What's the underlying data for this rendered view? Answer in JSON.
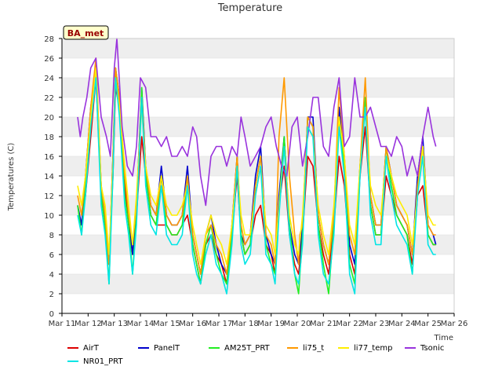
{
  "chart_data": {
    "type": "line",
    "title": "Temperature",
    "xlabel": "Time",
    "ylabel": "Temperatures (C)",
    "ylim": [
      0,
      28
    ],
    "xlim": [
      0,
      15
    ],
    "yticks": [
      0,
      2,
      4,
      6,
      8,
      10,
      12,
      14,
      16,
      18,
      20,
      22,
      24,
      26,
      28
    ],
    "xticks": [
      "Mar 11",
      "Mar 12",
      "Mar 13",
      "Mar 14",
      "Mar 15",
      "Mar 16",
      "Mar 17",
      "Mar 18",
      "Mar 19",
      "Mar 20",
      "Mar 21",
      "Mar 22",
      "Mar 23",
      "Mar 24",
      "Mar 25",
      "Mar 26"
    ],
    "grid": "horizontal bands",
    "legend_position": "bottom",
    "site_label": "BA_met",
    "x_unit": "days since Mar 11",
    "series": [
      {
        "name": "AirT",
        "color": "#dd0000",
        "x": [
          0.6,
          0.75,
          0.9,
          1.1,
          1.3,
          1.5,
          1.65,
          1.8,
          1.95,
          2.05,
          2.2,
          2.4,
          2.55,
          2.7,
          2.85,
          3.05,
          3.2,
          3.4,
          3.6,
          3.8,
          4.0,
          4.2,
          4.4,
          4.6,
          4.8,
          5.0,
          5.15,
          5.3,
          5.5,
          5.7,
          5.9,
          6.1,
          6.3,
          6.5,
          6.7,
          6.85,
          7.0,
          7.2,
          7.4,
          7.6,
          7.8,
          8.0,
          8.15,
          8.3,
          8.5,
          8.7,
          8.9,
          9.05,
          9.2,
          9.4,
          9.6,
          9.8,
          10.0,
          10.2,
          10.4,
          10.6,
          10.8,
          11.0,
          11.2,
          11.4,
          11.6,
          11.8,
          12.0,
          12.2,
          12.4,
          12.6,
          12.8,
          13.0,
          13.2,
          13.4,
          13.6,
          13.8,
          14.0,
          14.2,
          14.3
        ],
        "values": [
          11,
          9,
          12,
          18,
          24,
          12,
          9,
          5,
          14,
          23,
          21,
          13,
          9,
          6,
          10,
          18,
          14,
          10,
          9,
          9,
          9,
          8,
          8,
          9,
          10,
          7,
          5,
          3,
          7,
          8,
          6,
          5,
          3,
          8,
          14,
          8,
          6,
          7,
          10,
          11,
          7,
          6,
          4,
          11,
          15,
          8,
          5,
          4,
          8,
          16,
          15,
          9,
          6,
          4,
          9,
          16,
          13,
          6,
          4,
          14,
          19,
          11,
          8,
          8,
          14,
          12,
          10,
          9,
          8,
          5,
          12,
          13,
          8,
          7,
          7
        ]
      },
      {
        "name": "PanelT",
        "color": "#0000cc",
        "x": [
          0.6,
          0.75,
          0.9,
          1.1,
          1.3,
          1.5,
          1.65,
          1.8,
          1.95,
          2.05,
          2.2,
          2.4,
          2.55,
          2.7,
          2.85,
          3.05,
          3.2,
          3.4,
          3.6,
          3.8,
          4.0,
          4.2,
          4.4,
          4.6,
          4.8,
          5.0,
          5.15,
          5.3,
          5.5,
          5.7,
          5.9,
          6.1,
          6.3,
          6.5,
          6.7,
          6.85,
          7.0,
          7.2,
          7.4,
          7.6,
          7.8,
          8.0,
          8.15,
          8.3,
          8.5,
          8.7,
          8.9,
          9.05,
          9.2,
          9.4,
          9.6,
          9.8,
          10.0,
          10.2,
          10.4,
          10.6,
          10.8,
          11.0,
          11.2,
          11.4,
          11.6,
          11.8,
          12.0,
          12.2,
          12.4,
          12.6,
          12.8,
          13.0,
          13.2,
          13.4,
          13.6,
          13.8,
          14.0,
          14.2,
          14.3
        ],
        "values": [
          11,
          9,
          14,
          21,
          25,
          13,
          10,
          5,
          16,
          25,
          22,
          14,
          10,
          6,
          11,
          23,
          15,
          11,
          10,
          15,
          10,
          9,
          9,
          10,
          15,
          8,
          6,
          4,
          8,
          10,
          7,
          5,
          4,
          9,
          16,
          8,
          7,
          8,
          14,
          17,
          8,
          6,
          5,
          12,
          18,
          9,
          6,
          5,
          9,
          20,
          20,
          10,
          7,
          5,
          10,
          21,
          16,
          7,
          5,
          15,
          21,
          12,
          9,
          9,
          17,
          14,
          11,
          10,
          9,
          6,
          14,
          18,
          9,
          8,
          7
        ]
      },
      {
        "name": "AM25T_PRT",
        "color": "#22ee22",
        "x": [
          0.6,
          0.75,
          0.9,
          1.1,
          1.3,
          1.5,
          1.65,
          1.8,
          1.95,
          2.05,
          2.2,
          2.4,
          2.55,
          2.7,
          2.85,
          3.05,
          3.2,
          3.4,
          3.6,
          3.8,
          4.0,
          4.2,
          4.4,
          4.6,
          4.8,
          5.0,
          5.15,
          5.3,
          5.5,
          5.7,
          5.9,
          6.1,
          6.3,
          6.5,
          6.7,
          6.85,
          7.0,
          7.2,
          7.4,
          7.6,
          7.8,
          8.0,
          8.15,
          8.3,
          8.5,
          8.7,
          8.9,
          9.05,
          9.2,
          9.4,
          9.6,
          9.8,
          10.0,
          10.2,
          10.4,
          10.6,
          10.8,
          11.0,
          11.2,
          11.4,
          11.6,
          11.8,
          12.0,
          12.2,
          12.4,
          12.6,
          12.8,
          13.0,
          13.2,
          13.4,
          13.6,
          13.8,
          14.0,
          14.2,
          14.3
        ],
        "values": [
          11,
          8,
          13,
          20,
          25,
          12,
          9,
          3,
          15,
          25,
          21,
          12,
          9,
          4,
          10,
          23,
          14,
          10,
          9,
          14,
          9,
          8,
          8,
          9,
          14,
          7,
          5,
          3,
          7,
          9,
          6,
          4,
          3,
          8,
          16,
          8,
          6,
          7,
          13,
          16,
          7,
          5,
          4,
          11,
          18,
          9,
          4,
          2,
          8,
          20,
          19,
          9,
          5,
          2,
          9,
          20,
          15,
          5,
          3,
          15,
          22,
          11,
          8,
          8,
          17,
          13,
          10,
          9,
          8,
          4,
          13,
          17,
          8,
          7,
          7
        ]
      },
      {
        "name": "li75_t",
        "color": "#ff9900",
        "x": [
          0.6,
          0.75,
          0.9,
          1.1,
          1.3,
          1.5,
          1.65,
          1.8,
          1.95,
          2.05,
          2.2,
          2.4,
          2.55,
          2.7,
          2.85,
          3.05,
          3.2,
          3.4,
          3.6,
          3.8,
          4.0,
          4.2,
          4.4,
          4.6,
          4.8,
          5.0,
          5.15,
          5.3,
          5.5,
          5.7,
          5.9,
          6.1,
          6.3,
          6.5,
          6.7,
          6.85,
          7.0,
          7.2,
          7.4,
          7.6,
          7.8,
          8.0,
          8.15,
          8.3,
          8.5,
          8.7,
          8.9,
          9.0,
          9.05,
          9.1,
          9.2,
          9.4,
          9.6,
          9.8,
          10.0,
          10.2,
          10.4,
          10.6,
          10.8,
          11.0,
          11.2,
          11.4,
          11.6,
          11.8,
          12.0,
          12.2,
          12.4,
          12.6,
          12.8,
          13.0,
          13.2,
          13.4,
          13.6,
          13.8,
          14.0,
          14.2,
          14.3
        ],
        "values": [
          12,
          10,
          14,
          21,
          26,
          13,
          10,
          5,
          16,
          25,
          22,
          14,
          10,
          7,
          11,
          22,
          15,
          11,
          10,
          14,
          10,
          9,
          9,
          10,
          14,
          8,
          6,
          4,
          8,
          9,
          7,
          6,
          4,
          9,
          16,
          9,
          7,
          8,
          13,
          16,
          8,
          7,
          5,
          18,
          24,
          14,
          8,
          6,
          5,
          8,
          9,
          20,
          19,
          10,
          7,
          5,
          10,
          23,
          16,
          8,
          6,
          15,
          24,
          12,
          9,
          9,
          17,
          14,
          11,
          10,
          9,
          6,
          13,
          17,
          9,
          8,
          8
        ]
      },
      {
        "name": "li77_temp",
        "color": "#ffee00",
        "x": [
          0.6,
          0.75,
          0.9,
          1.1,
          1.3,
          1.5,
          1.65,
          1.8,
          1.95,
          2.05,
          2.2,
          2.4,
          2.55,
          2.7,
          2.85,
          3.05,
          3.2,
          3.4,
          3.6,
          3.8,
          4.0,
          4.2,
          4.4,
          4.6,
          4.8,
          5.0,
          5.15,
          5.3,
          5.5,
          5.7,
          5.9,
          6.1,
          6.3,
          6.5,
          6.7,
          6.85,
          7.0,
          7.2,
          7.4,
          7.6,
          7.8,
          8.0,
          8.15,
          8.3,
          8.5,
          8.7,
          8.9,
          9.05,
          9.2,
          9.4,
          9.6,
          9.8,
          10.0,
          10.2,
          10.4,
          10.6,
          10.8,
          11.0,
          11.2,
          11.4,
          11.6,
          11.8,
          12.0,
          12.2,
          12.4,
          12.6,
          12.8,
          13.0,
          13.2,
          13.4,
          13.6,
          13.8,
          14.0,
          14.2,
          14.3
        ],
        "values": [
          13,
          11,
          14,
          20,
          25,
          13,
          11,
          6,
          15,
          24,
          21,
          15,
          11,
          7,
          12,
          21,
          15,
          12,
          11,
          14,
          11,
          10,
          10,
          11,
          13,
          9,
          7,
          5,
          8,
          10,
          8,
          7,
          5,
          9,
          15,
          10,
          8,
          8,
          12,
          15,
          9,
          8,
          6,
          11,
          17,
          10,
          7,
          6,
          10,
          19,
          18,
          11,
          8,
          6,
          11,
          20,
          16,
          9,
          7,
          15,
          21,
          13,
          11,
          10,
          16,
          14,
          12,
          11,
          10,
          7,
          12,
          17,
          10,
          9,
          9
        ]
      },
      {
        "name": "Tsonic",
        "color": "#9933dd",
        "x": [
          0.6,
          0.7,
          0.8,
          0.95,
          1.1,
          1.3,
          1.5,
          1.7,
          1.85,
          2.0,
          2.1,
          2.3,
          2.5,
          2.7,
          2.85,
          3.0,
          3.2,
          3.4,
          3.6,
          3.8,
          4.0,
          4.2,
          4.4,
          4.6,
          4.8,
          5.0,
          5.15,
          5.3,
          5.5,
          5.7,
          5.9,
          6.1,
          6.3,
          6.5,
          6.7,
          6.85,
          7.0,
          7.2,
          7.4,
          7.6,
          7.8,
          8.0,
          8.2,
          8.4,
          8.6,
          8.8,
          9.0,
          9.2,
          9.4,
          9.6,
          9.8,
          10.0,
          10.2,
          10.4,
          10.6,
          10.8,
          11.0,
          11.2,
          11.4,
          11.6,
          11.8,
          12.0,
          12.2,
          12.4,
          12.6,
          12.8,
          13.0,
          13.2,
          13.4,
          13.6,
          13.8,
          14.0,
          14.2,
          14.3
        ],
        "values": [
          20,
          18,
          20,
          22,
          25,
          26,
          20,
          18,
          16,
          25,
          28,
          19,
          15,
          14,
          17,
          24,
          23,
          18,
          18,
          17,
          18,
          16,
          16,
          17,
          16,
          19,
          18,
          14,
          11,
          16,
          17,
          17,
          15,
          17,
          16,
          20,
          18,
          15,
          16,
          17,
          19,
          20,
          17,
          15,
          14,
          19,
          20,
          15,
          18,
          22,
          22,
          17,
          16,
          21,
          24,
          17,
          18,
          24,
          20,
          20,
          21,
          19,
          17,
          17,
          16,
          18,
          17,
          14,
          16,
          14,
          18,
          21,
          18,
          17
        ]
      },
      {
        "name": "NR01_PRT",
        "color": "#00e5e5",
        "x": [
          0.6,
          0.75,
          0.9,
          1.1,
          1.3,
          1.5,
          1.65,
          1.8,
          1.95,
          2.05,
          2.2,
          2.4,
          2.55,
          2.7,
          2.85,
          3.05,
          3.2,
          3.4,
          3.6,
          3.8,
          4.0,
          4.2,
          4.4,
          4.6,
          4.8,
          5.0,
          5.15,
          5.3,
          5.5,
          5.7,
          5.9,
          6.1,
          6.3,
          6.5,
          6.7,
          6.85,
          7.0,
          7.2,
          7.4,
          7.6,
          7.8,
          8.0,
          8.15,
          8.3,
          8.5,
          8.7,
          8.9,
          9.05,
          9.2,
          9.4,
          9.6,
          9.8,
          10.0,
          10.2,
          10.4,
          10.6,
          10.8,
          11.0,
          11.2,
          11.4,
          11.6,
          11.8,
          12.0,
          12.2,
          12.4,
          12.6,
          12.8,
          13.0,
          13.2,
          13.4,
          13.6,
          13.8,
          14.0,
          14.2,
          14.3
        ],
        "values": [
          10,
          8,
          12,
          19,
          24,
          11,
          8,
          3,
          14,
          24,
          20,
          11,
          8,
          4,
          9,
          22,
          13,
          9,
          8,
          13,
          8,
          7,
          7,
          8,
          13,
          6,
          4,
          3,
          6,
          8,
          5,
          4,
          2,
          7,
          15,
          7,
          5,
          6,
          12,
          15,
          6,
          5,
          3,
          10,
          17,
          8,
          4,
          3,
          7,
          19,
          18,
          8,
          4,
          3,
          8,
          19,
          14,
          4,
          2,
          14,
          21,
          10,
          7,
          7,
          16,
          12,
          9,
          8,
          7,
          4,
          12,
          16,
          7,
          6,
          6
        ]
      }
    ]
  }
}
